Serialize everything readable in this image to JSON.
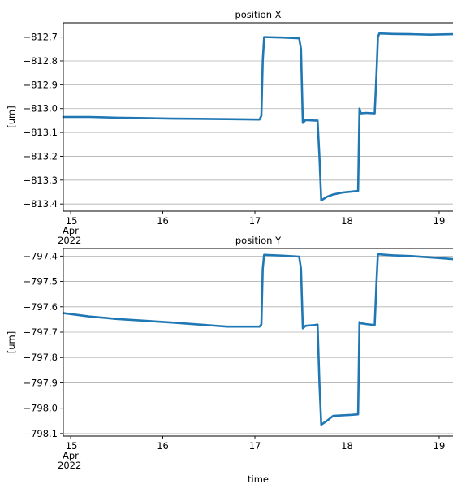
{
  "chart_data": [
    {
      "type": "line",
      "title": "position X",
      "ylabel": "[um]",
      "xlabel": "",
      "ylim": [
        -813.43,
        -812.64
      ],
      "xlim": [
        14.92,
        19.15
      ],
      "y_ticks": [
        -812.7,
        -812.8,
        -812.9,
        -813.0,
        -813.1,
        -813.2,
        -813.3,
        -813.4
      ],
      "y_tick_labels": [
        "−812.7",
        "−812.8",
        "−812.9",
        "−813.0",
        "−813.1",
        "−813.2",
        "−813.3",
        "−813.4"
      ],
      "x_ticks": [
        15,
        16,
        17,
        18,
        19
      ],
      "x_tick_labels": [
        "15",
        "16",
        "17",
        "18",
        "19"
      ],
      "x_offset_label": [
        "Apr",
        "2022"
      ],
      "grid": "horizontal",
      "series": [
        {
          "color": "#1f77b4",
          "x": [
            14.92,
            15.2,
            15.5,
            15.8,
            16.1,
            16.4,
            16.7,
            17.05,
            17.07,
            17.085,
            17.1,
            17.3,
            17.48,
            17.5,
            17.52,
            17.55,
            17.65,
            17.68,
            17.7,
            17.72,
            17.78,
            17.85,
            17.95,
            18.05,
            18.12,
            18.135,
            18.15,
            18.2,
            18.3,
            18.32,
            18.335,
            18.35,
            18.5,
            18.7,
            18.9,
            19.15
          ],
          "y": [
            -813.035,
            -813.035,
            -813.038,
            -813.04,
            -813.042,
            -813.043,
            -813.044,
            -813.046,
            -813.03,
            -812.8,
            -812.7,
            -812.702,
            -812.705,
            -812.75,
            -813.06,
            -813.048,
            -813.05,
            -813.05,
            -813.2,
            -813.385,
            -813.37,
            -813.36,
            -813.352,
            -813.348,
            -813.345,
            -813.0,
            -813.02,
            -813.018,
            -813.02,
            -812.85,
            -812.7,
            -812.685,
            -812.687,
            -812.688,
            -812.69,
            -812.688
          ]
        }
      ]
    },
    {
      "type": "line",
      "title": "position Y",
      "ylabel": "[um]",
      "xlabel": "time",
      "ylim": [
        -798.11,
        -797.37
      ],
      "xlim": [
        14.92,
        19.15
      ],
      "y_ticks": [
        -797.4,
        -797.5,
        -797.6,
        -797.7,
        -797.8,
        -797.9,
        -798.0,
        -798.1
      ],
      "y_tick_labels": [
        "−797.4",
        "−797.5",
        "−797.6",
        "−797.7",
        "−797.8",
        "−797.9",
        "−798.0",
        "−798.1"
      ],
      "x_ticks": [
        15,
        16,
        17,
        18,
        19
      ],
      "x_tick_labels": [
        "15",
        "16",
        "17",
        "18",
        "19"
      ],
      "x_offset_label": [
        "Apr",
        "2022"
      ],
      "grid": "horizontal",
      "series": [
        {
          "color": "#1f77b4",
          "x": [
            14.92,
            15.2,
            15.5,
            15.8,
            16.1,
            16.4,
            16.7,
            17.05,
            17.07,
            17.085,
            17.1,
            17.3,
            17.48,
            17.5,
            17.52,
            17.55,
            17.65,
            17.68,
            17.7,
            17.72,
            17.78,
            17.85,
            17.95,
            18.05,
            18.12,
            18.135,
            18.15,
            18.2,
            18.3,
            18.32,
            18.335,
            18.35,
            18.5,
            18.7,
            18.9,
            19.15
          ],
          "y": [
            -797.625,
            -797.638,
            -797.648,
            -797.655,
            -797.662,
            -797.67,
            -797.678,
            -797.678,
            -797.67,
            -797.45,
            -797.395,
            -797.398,
            -797.402,
            -797.45,
            -797.685,
            -797.675,
            -797.672,
            -797.67,
            -797.9,
            -798.065,
            -798.05,
            -798.03,
            -798.028,
            -798.026,
            -798.024,
            -797.66,
            -797.665,
            -797.668,
            -797.672,
            -797.5,
            -797.39,
            -797.393,
            -797.397,
            -797.4,
            -797.405,
            -797.412
          ]
        }
      ]
    }
  ]
}
